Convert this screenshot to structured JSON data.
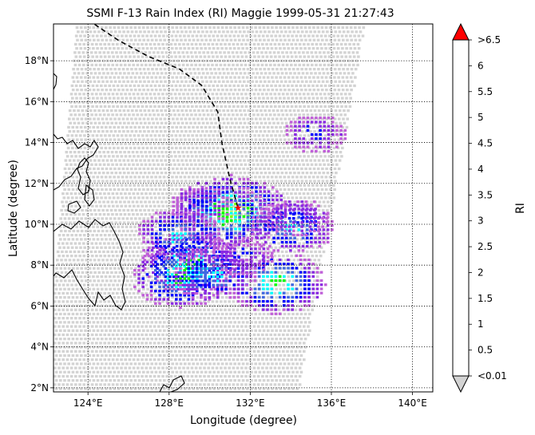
{
  "title": "SSMI F-13 Rain Index (RI) Maggie 1999-05-31 21:27:43",
  "map": {
    "xlabel": "Longitude (degree)",
    "ylabel": "Latitude (degree)",
    "lon_range": [
      122.3,
      141.0
    ],
    "lat_range": [
      1.8,
      19.8
    ],
    "lon_ticks": [
      {
        "value": 124,
        "label": "124°E"
      },
      {
        "value": 128,
        "label": "128°E"
      },
      {
        "value": 132,
        "label": "132°E"
      },
      {
        "value": 136,
        "label": "136°E"
      },
      {
        "value": 140,
        "label": "140°E"
      }
    ],
    "lat_ticks": [
      {
        "value": 2,
        "label": "2°N"
      },
      {
        "value": 4,
        "label": "4°N"
      },
      {
        "value": 6,
        "label": "6°N"
      },
      {
        "value": 8,
        "label": "8°N"
      },
      {
        "value": 10,
        "label": "10°N"
      },
      {
        "value": 12,
        "label": "12°N"
      },
      {
        "value": 14,
        "label": "14°N"
      },
      {
        "value": 16,
        "label": "16°N"
      },
      {
        "value": 18,
        "label": "18°N"
      }
    ],
    "grid": "dotted",
    "swath_color": "#d3d3d3",
    "track_style": "dashed",
    "storm_marker_color": "#ff0000"
  },
  "colorbar": {
    "label": "RI",
    "tick_labels": [
      "<0.01",
      "0.5",
      "1",
      "1.5",
      "2",
      "2.5",
      "3",
      "3.5",
      "4",
      "4.5",
      "5",
      "5.5",
      "6",
      ">6.5"
    ],
    "colors": [
      "#c060d8",
      "#8a2be2",
      "#0000ff",
      "#4169e1",
      "#00ffff",
      "#00ff00",
      "#7cfc00",
      "#ffff00",
      "#ffa500",
      "#8b0000",
      "#000000",
      "#000000"
    ],
    "over_color": "#ff0000",
    "under_color": "#d3d3d3"
  },
  "chart_data": {
    "type": "map",
    "storm_track_lonlat": [
      [
        124.0,
        20.0
      ],
      [
        125.5,
        19.0
      ],
      [
        127.0,
        18.2
      ],
      [
        128.5,
        17.6
      ],
      [
        129.6,
        16.8
      ],
      [
        130.4,
        15.5
      ],
      [
        130.6,
        14.0
      ],
      [
        131.0,
        12.2
      ],
      [
        131.4,
        10.8
      ]
    ],
    "storm_position_lonlat": [
      131.4,
      10.8
    ],
    "rain_index_cells": [
      {
        "lon": 131.0,
        "lat": 10.7,
        "ri": 3.5
      },
      {
        "lon": 130.6,
        "lat": 10.5,
        "ri": 2.8
      },
      {
        "lon": 133.2,
        "lat": 7.2,
        "ri": 2.8
      },
      {
        "lon": 129.0,
        "lat": 8.2,
        "ri": 2.8
      },
      {
        "lon": 128.5,
        "lat": 7.5,
        "ri": 2.8
      },
      {
        "lon": 128.4,
        "lat": 9.5,
        "ri": 2.2
      },
      {
        "lon": 130.2,
        "lat": 7.6,
        "ri": 2.2
      },
      {
        "lon": 134.0,
        "lat": 9.9,
        "ri": 2.2
      },
      {
        "lon": 131.5,
        "lat": 8.5,
        "ri": 1.2
      },
      {
        "lon": 129.5,
        "lat": 11.0,
        "ri": 1.2
      },
      {
        "lon": 134.2,
        "lat": 10.4,
        "ri": 1.2
      },
      {
        "lon": 135.1,
        "lat": 14.5,
        "ri": 1.2
      }
    ]
  }
}
